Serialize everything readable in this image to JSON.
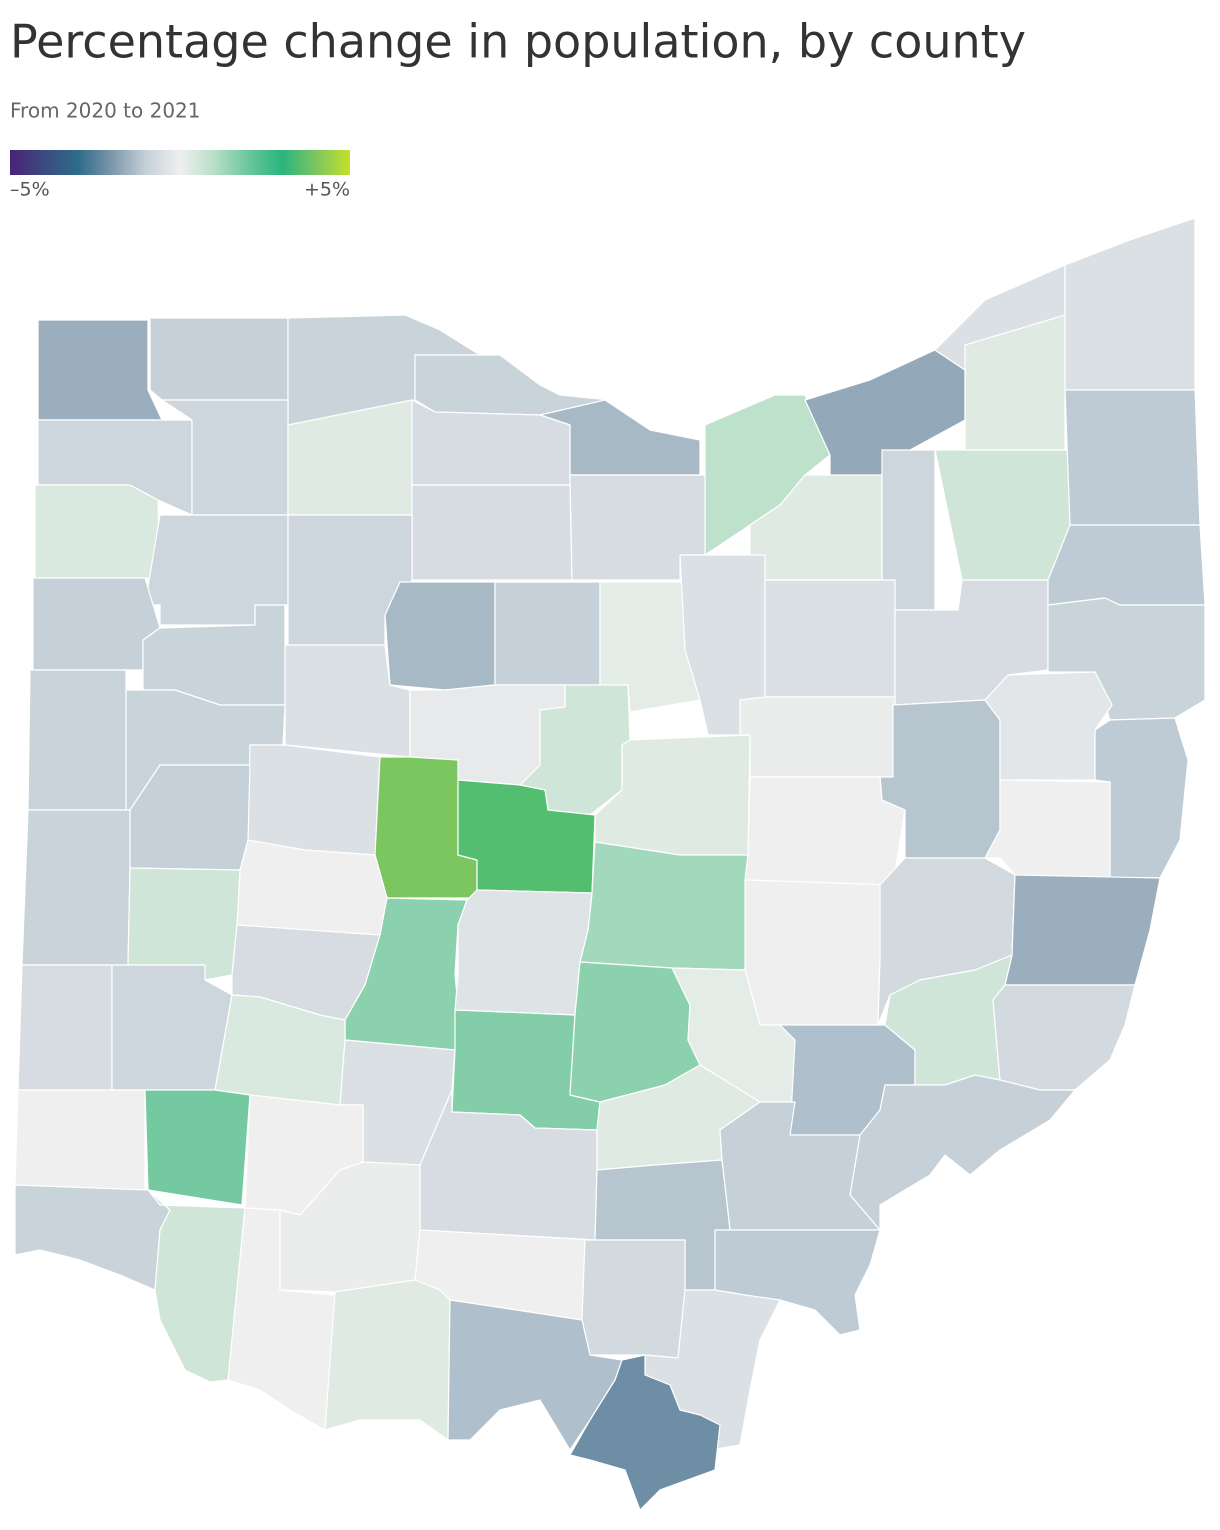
{
  "chart_data": {
    "type": "choropleth",
    "title": "Percentage change in population, by county",
    "subtitle": "From 2020 to 2021",
    "legend_ticks": [
      {
        "value": -5,
        "label": "–5%"
      },
      {
        "value": 5,
        "label": "+5%"
      }
    ],
    "colors": [
      "#4a2377",
      "#3b4a80",
      "#2e6b8a",
      "#7d97ab",
      "#c5d0d8",
      "#efefef",
      "#b9dfc8",
      "#6cc79c",
      "#2ab47f",
      "#7cc660",
      "#c6e02c"
    ],
    "values": [
      -1.6,
      -1.0,
      -0.9,
      -0.9,
      -1.4,
      0.9,
      -1.7,
      -0.5,
      -0.5,
      0.3,
      -0.8,
      -0.8,
      0.3,
      -0.6,
      -0.6,
      -0.6,
      0.3,
      -0.8,
      0.6,
      -1.1,
      0.4,
      -0.8,
      -0.8,
      -1.4,
      -1.0,
      0.2,
      -0.5,
      -0.5,
      -0.6,
      -1.1,
      -0.9,
      -1.0,
      -0.9,
      -0.5,
      -0.2,
      0.6,
      0.3,
      0.1,
      -1.2,
      -0.3,
      -1.1,
      -0.9,
      -0.9,
      -0.5,
      4.0,
      3.5,
      1.3,
      0,
      0,
      -0.9,
      -1.0,
      0,
      0.6,
      -0.6,
      1.6,
      -0.4,
      0,
      -0.7,
      -1.6,
      -0.6,
      -0.8,
      0.4,
      -0.5,
      1.7,
      1.6,
      0.2,
      -1.3,
      0.6,
      -0.7,
      0,
      1.9,
      0,
      -0.6,
      0.3,
      -1.0,
      -1.0,
      -1.2,
      -0.9,
      0.6,
      0,
      0.1,
      0.3,
      0,
      -0.7,
      -1.1,
      -1.3,
      -0.5,
      -2.2
    ]
  }
}
